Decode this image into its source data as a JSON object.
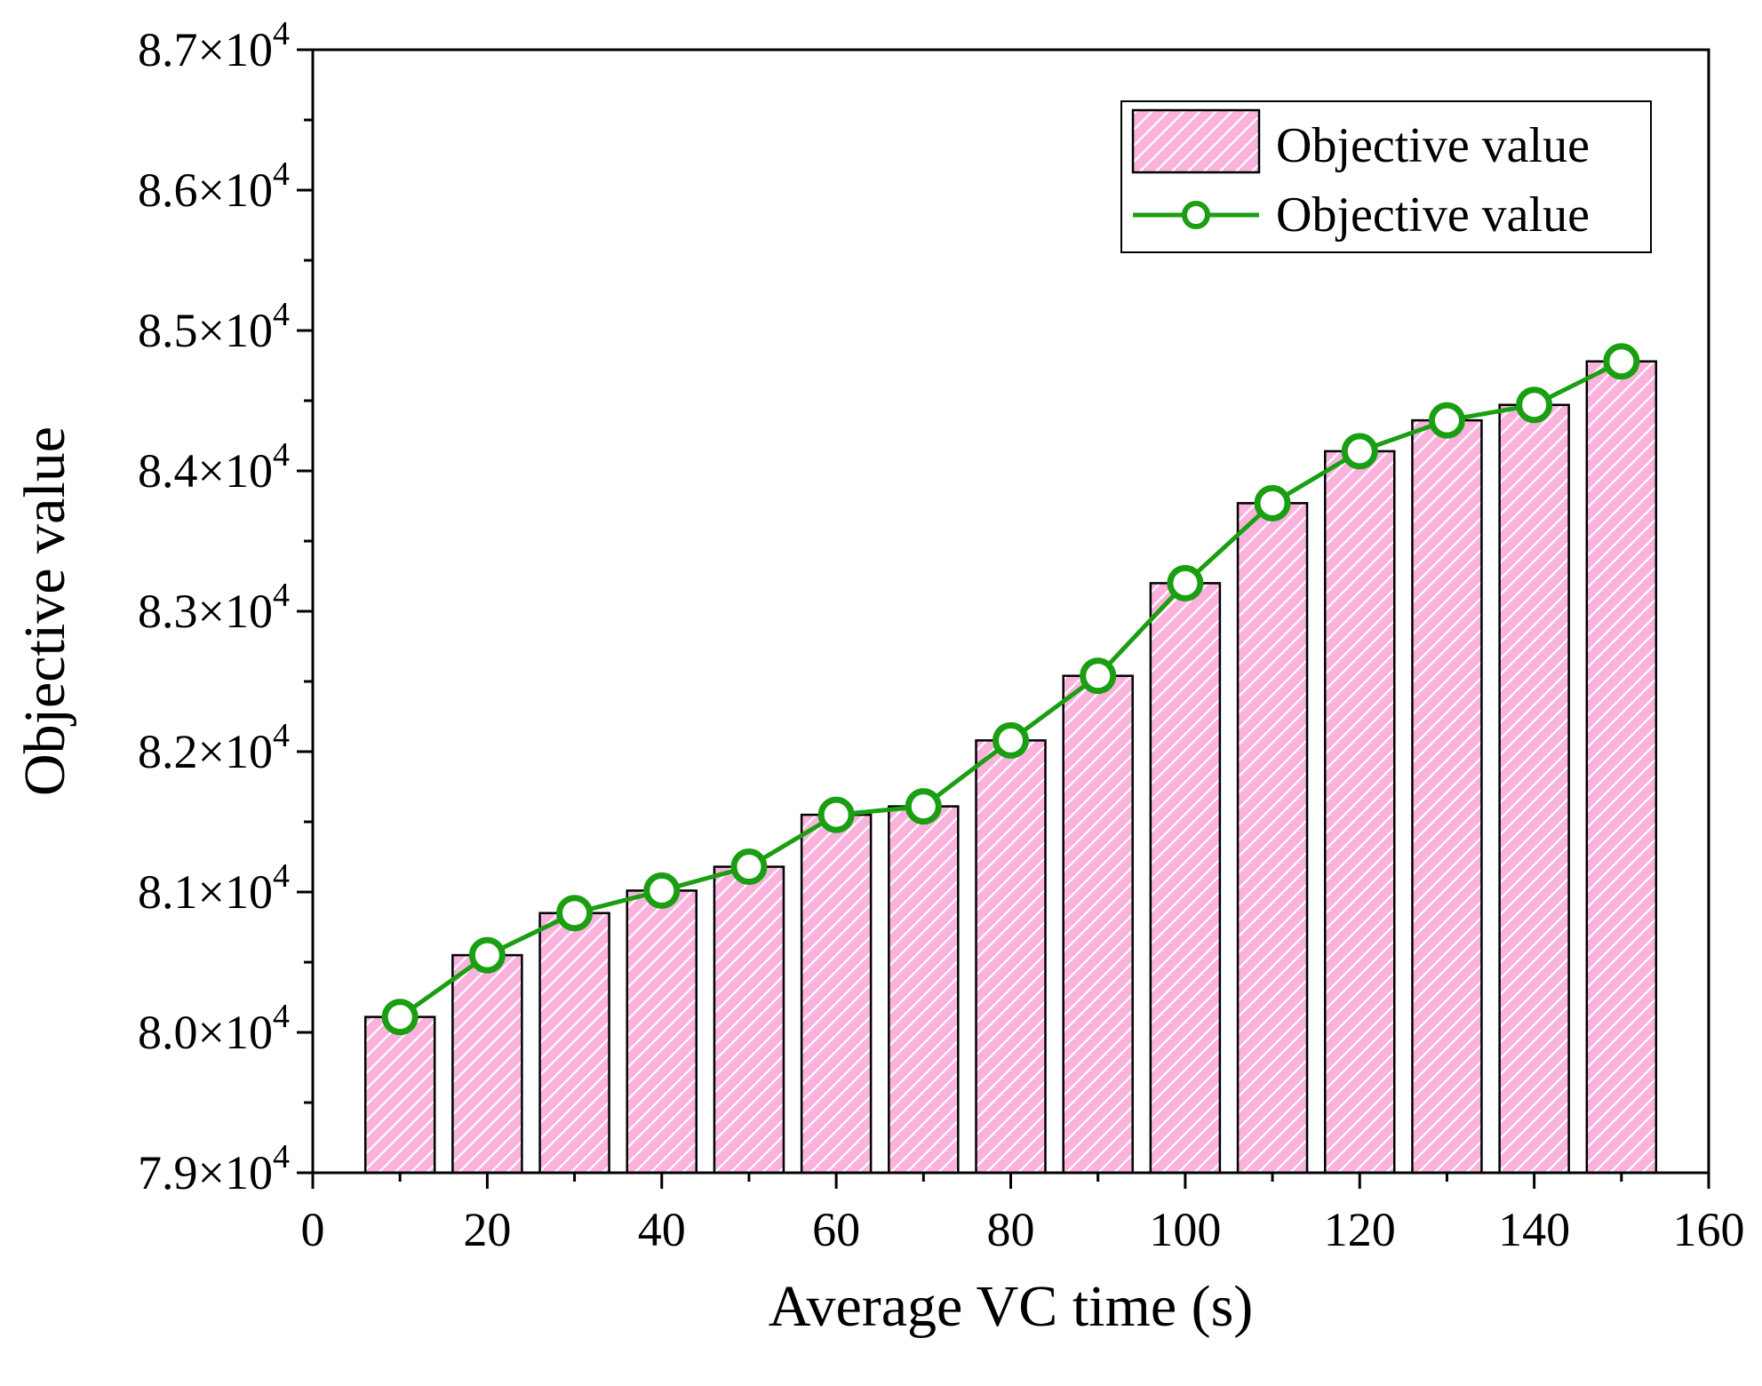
{
  "chart_data": {
    "type": "bar+line",
    "xlabel": "Average VC time (s)",
    "ylabel": "Objective value",
    "xlim": [
      0,
      160
    ],
    "ylim": [
      79000,
      87000
    ],
    "x_ticks": [
      0,
      20,
      40,
      60,
      80,
      100,
      120,
      140,
      160
    ],
    "x_tick_labels": [
      "0",
      "20",
      "40",
      "60",
      "80",
      "100",
      "120",
      "140",
      "160"
    ],
    "y_ticks": [
      79000,
      80000,
      81000,
      82000,
      83000,
      84000,
      85000,
      86000,
      87000
    ],
    "y_tick_labels": [
      {
        "mantissa": "7.9",
        "times": "×10",
        "exp": "4"
      },
      {
        "mantissa": "8.0",
        "times": "×10",
        "exp": "4"
      },
      {
        "mantissa": "8.1",
        "times": "×10",
        "exp": "4"
      },
      {
        "mantissa": "8.2",
        "times": "×10",
        "exp": "4"
      },
      {
        "mantissa": "8.3",
        "times": "×10",
        "exp": "4"
      },
      {
        "mantissa": "8.4",
        "times": "×10",
        "exp": "4"
      },
      {
        "mantissa": "8.5",
        "times": "×10",
        "exp": "4"
      },
      {
        "mantissa": "8.6",
        "times": "×10",
        "exp": "4"
      },
      {
        "mantissa": "8.7",
        "times": "×10",
        "exp": "4"
      }
    ],
    "x": [
      10,
      20,
      30,
      40,
      50,
      60,
      70,
      80,
      90,
      100,
      110,
      120,
      130,
      140,
      150
    ],
    "series": [
      {
        "name": "Objective value",
        "kind": "bar",
        "values": [
          80110,
          80550,
          80850,
          81010,
          81180,
          81550,
          81610,
          82080,
          82540,
          83200,
          83770,
          84140,
          84360,
          84470,
          84780
        ],
        "fill": "#f9b3dd",
        "hatch": "#ffffff",
        "edge": "#000000"
      },
      {
        "name": "Objective value",
        "kind": "line",
        "values": [
          80110,
          80550,
          80850,
          81010,
          81180,
          81550,
          81610,
          82080,
          82540,
          83200,
          83770,
          84140,
          84360,
          84470,
          84780
        ],
        "color": "#1a9e12",
        "marker": "open-circle"
      }
    ],
    "legend": {
      "position": "top-right",
      "entries": [
        "Objective value",
        "Objective value"
      ]
    }
  }
}
